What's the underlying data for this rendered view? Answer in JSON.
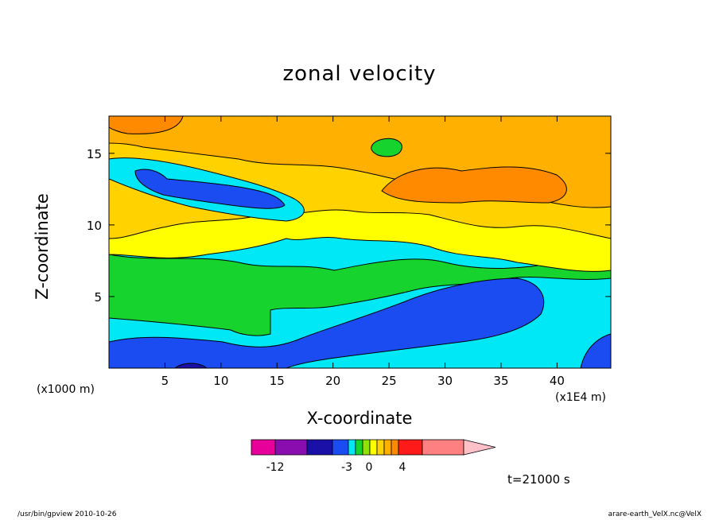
{
  "chart_data": {
    "type": "contour",
    "title": "zonal velocity",
    "xlabel": "X-coordinate",
    "ylabel": "Z-coordinate",
    "x_unit_left": "(x1000 m)",
    "x_unit_right": "(x1E4 m)",
    "xlim": [
      0,
      44.8
    ],
    "ylim": [
      0,
      17.6
    ],
    "xticks": [
      "5",
      "10",
      "15",
      "20",
      "25",
      "30",
      "35",
      "40"
    ],
    "yticks": [
      "5",
      "10",
      "15"
    ],
    "colorbar": {
      "levels": [
        -15,
        -12,
        -9,
        -6,
        -3,
        -2,
        -1,
        0,
        1,
        2,
        3,
        4,
        6,
        9
      ],
      "colors": [
        "#e8009a",
        "#8a0db0",
        "#1a10a8",
        "#1a4cf2",
        "#00e8f5",
        "#16d32e",
        "#8fe300",
        "#ffff00",
        "#ffd200",
        "#ffb000",
        "#ff8a00",
        "#ff1a1a",
        "#ff8080",
        "#ffc0c8"
      ],
      "labels": [
        "-12",
        "-3",
        "0",
        "4"
      ]
    },
    "grid": false
  },
  "time_label": "t=21000 s",
  "footer": {
    "left": "/usr/bin/gpview   2010-10-26",
    "right": "arare-earth_VelX.nc@VelX"
  }
}
